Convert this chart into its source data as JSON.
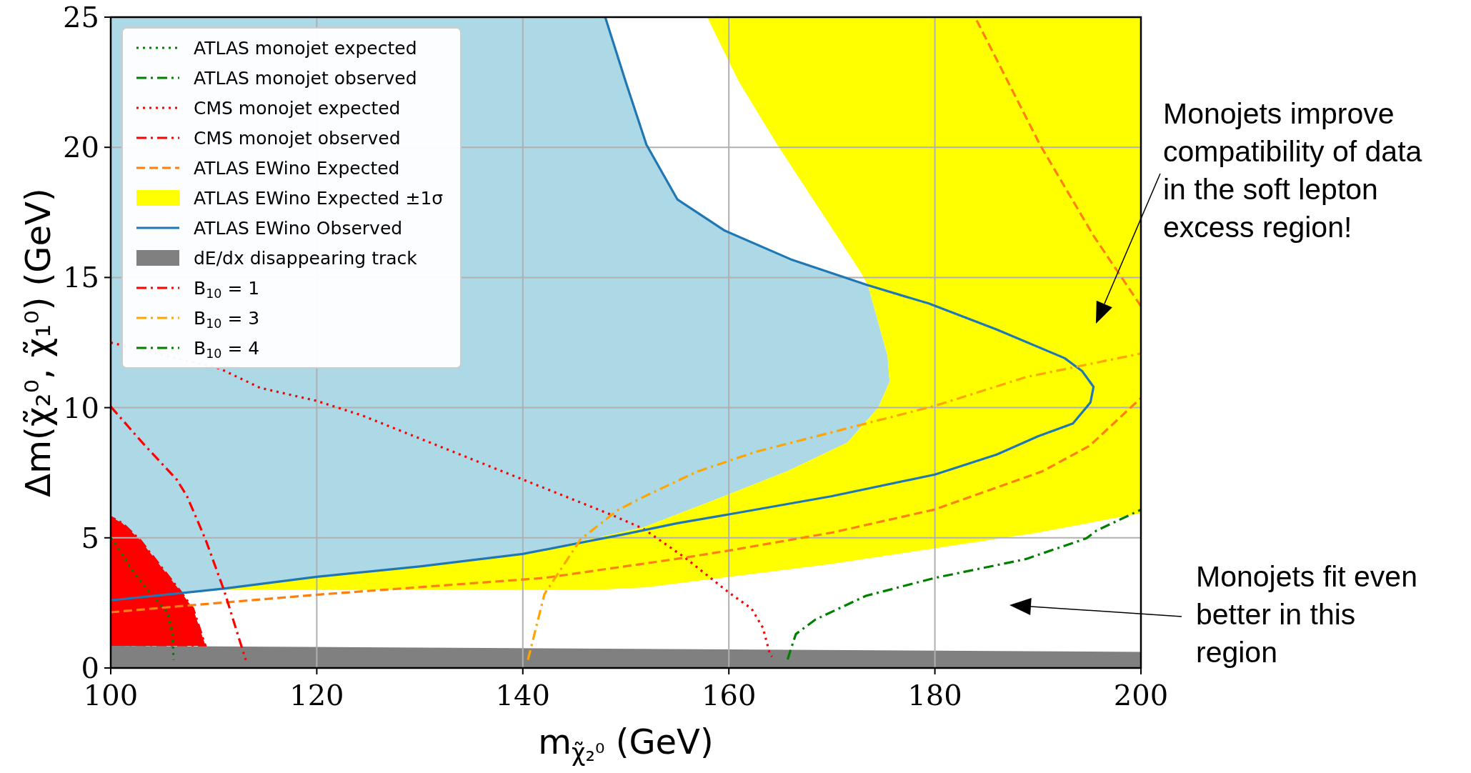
{
  "chart_data": {
    "type": "line",
    "xlabel": "m$_{χ̃₂⁰}$ (GeV)",
    "ylabel": "Δm(χ̃₂⁰, χ̃₁⁰) (GeV)",
    "xlim": [
      100,
      200
    ],
    "ylim": [
      0,
      25
    ],
    "xticks": [
      100,
      120,
      140,
      160,
      180,
      200
    ],
    "yticks": [
      0,
      5,
      10,
      15,
      20,
      25
    ],
    "grid": true,
    "legend": "top left",
    "annotations": [
      "Monojets improve\ncompatibility of data\nin the soft lepton\nexcess region!",
      "Monojets fit even\nbetter in this\nregion"
    ],
    "series": [
      {
        "type": "area",
        "color": "#add8e6",
        "x": [
          100,
          148,
          150,
          152,
          155,
          159.6,
          166,
          173.5,
          175.4,
          175.6,
          174.5,
          171.5,
          165.6,
          157.8,
          151.7,
          140,
          130,
          120,
          111,
          100
        ],
        "values": [
          25,
          25,
          22.5,
          20.1,
          18.0,
          16.8,
          15.7,
          14.7,
          12,
          11,
          10,
          8.66,
          7.55,
          6.33,
          5.4,
          4.38,
          3.9,
          3.5,
          3.05,
          2.6
        ]
      },
      {
        "name": "ATLAS monojet expected",
        "color": "#008000",
        "line_style": "dotted",
        "x": [
          100,
          100.4,
          102,
          103.9,
          105.5,
          106,
          106.1
        ],
        "values": [
          5.0,
          4.8,
          3.8,
          2.83,
          2.14,
          1.3,
          0.31
        ]
      },
      {
        "name": "ATLAS monojet observed",
        "color": "#008000",
        "line_style": "dashdot"
      },
      {
        "name": "CMS monojet expected",
        "color": "#ff0000",
        "line_style": "dotted",
        "x": [
          100,
          110.6,
          114.5,
          120,
          124.4,
          132,
          140,
          148.5,
          151.7,
          155.7,
          160,
          162.2,
          163.3,
          164,
          164.2
        ],
        "values": [
          12.5,
          11.5,
          10.76,
          10.26,
          9.7,
          8.5,
          7.24,
          5.9,
          5.35,
          4.25,
          2.9,
          2.28,
          1.55,
          0.51,
          0.43
        ]
      },
      {
        "name": "CMS monojet observed",
        "type": "area",
        "color": "#ff0000",
        "line_style": "dashdot",
        "x": [
          100,
          100,
          101.1,
          102.8,
          106.7,
          108,
          108.9,
          109.2
        ],
        "values": [
          0.85,
          5.8,
          5.57,
          4.94,
          2.98,
          2.28,
          1.2,
          0.85
        ]
      },
      {
        "name": "ATLAS EWino Expected",
        "color": "#ff7f0e",
        "line_style": "dashed",
        "x": [
          100,
          107.8,
          120.9,
          142.1,
          155.1,
          160,
          170,
          180,
          190.4,
          195,
          200,
          null,
          200,
          195.4,
          190.2,
          183.9
        ],
        "values": [
          2.14,
          2.41,
          2.84,
          3.46,
          4.2,
          4.51,
          5.2,
          6.09,
          7.55,
          8.53,
          10.37,
          null,
          13.9,
          16.6,
          20.1,
          25
        ]
      },
      {
        "name": "ATLAS EWino Expected ±1σ",
        "type": "area",
        "color": "#ffff00",
        "x": [
          157.9,
          200,
          200,
          190,
          180,
          170,
          160,
          152,
          147,
          110,
          111,
          120,
          130,
          140,
          151.7,
          157.8,
          165.6,
          171.5,
          174.5,
          175.6,
          175.4,
          173.5,
          172.8,
          169,
          164.7,
          161
        ],
        "values": [
          25,
          25,
          5.95,
          5.2,
          4.6,
          4.0,
          3.5,
          3.1,
          3.0,
          3.0,
          3.05,
          3.5,
          3.9,
          4.38,
          5.4,
          6.33,
          7.55,
          8.66,
          10,
          11,
          12,
          14.7,
          15.2,
          17.5,
          20.1,
          22.5
        ]
      },
      {
        "name": "ATLAS EWino Observed",
        "color": "#1f77b4",
        "line_style": "solid",
        "x": [
          100,
          111,
          120,
          130,
          140,
          150,
          155,
          160,
          170,
          180,
          186,
          190,
          193.4,
          195.1,
          195.4,
          194.3,
          192.6,
          186,
          179.4,
          173.5,
          166,
          159.6,
          155,
          152,
          150,
          148
        ],
        "values": [
          2.6,
          3.05,
          3.5,
          3.9,
          4.38,
          5.15,
          5.56,
          5.9,
          6.6,
          7.43,
          8.2,
          8.9,
          9.39,
          10.2,
          10.8,
          11.4,
          11.9,
          13.0,
          14.0,
          14.7,
          15.7,
          16.8,
          18.0,
          20.1,
          22.5,
          25
        ]
      },
      {
        "name": "dE/dx disappearing track",
        "type": "area",
        "color": "#808080",
        "x": [
          100,
          100,
          200,
          200
        ],
        "values": [
          0,
          0.85,
          0.62,
          0
        ]
      },
      {
        "name": "B$_{10}$ = 1",
        "color": "#ff0000",
        "line_style": "dashdot",
        "x": [
          100,
          103.2,
          106.4,
          107.4,
          109.2,
          111,
          113.1
        ],
        "values": [
          10.04,
          8.6,
          7.24,
          6.6,
          4.94,
          2.98,
          0.31
        ]
      },
      {
        "name": "B$_{10}$ = 3",
        "color": "#ffa500",
        "line_style": "dashdot",
        "x": [
          140.5,
          142.1,
          145.6,
          149.2,
          151.7,
          156.9,
          162.5,
          173.3,
          180,
          188.8,
          200
        ],
        "values": [
          0.31,
          2.84,
          4.94,
          6.06,
          6.57,
          7.54,
          8.29,
          9.39,
          10.07,
          11.17,
          12.08
        ]
      },
      {
        "name": "B$_{10}$ = 4",
        "color": "#008000",
        "line_style": "dashdot",
        "x": [
          165.7,
          166.5,
          168.4,
          173.3,
          180,
          188.8,
          194.7,
          195.7,
          200
        ],
        "values": [
          0.33,
          1.3,
          1.86,
          2.77,
          3.46,
          4.18,
          4.98,
          5.28,
          6.08
        ]
      }
    ]
  }
}
